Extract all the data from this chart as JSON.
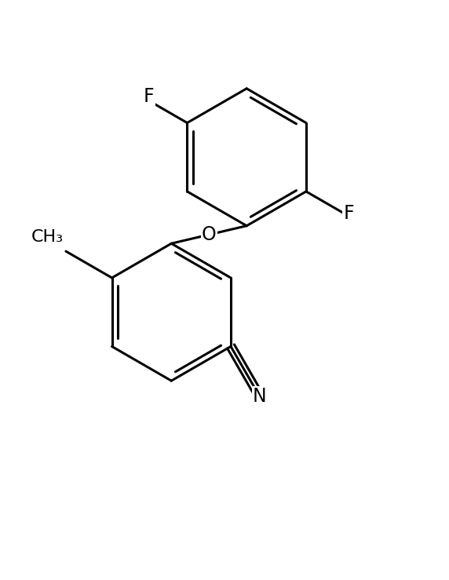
{
  "background_color": "#ffffff",
  "line_color": "#000000",
  "line_width": 2.2,
  "font_size": 17,
  "figsize": [
    5.72,
    7.39
  ],
  "dpi": 100,
  "xlim": [
    0,
    10
  ],
  "ylim": [
    0,
    13
  ]
}
